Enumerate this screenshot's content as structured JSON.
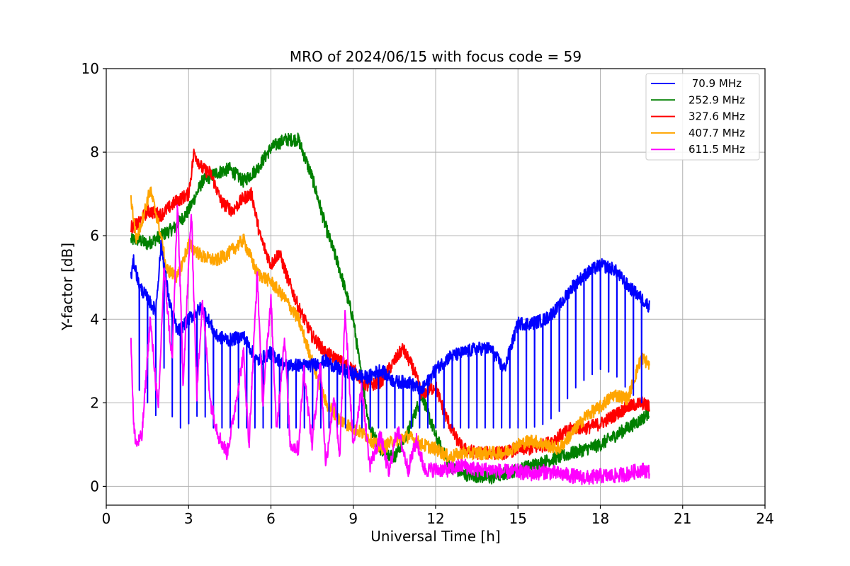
{
  "chart_data": {
    "type": "line",
    "title": "MRO of 2024/06/15 with focus code = 59",
    "xlabel": "Universal Time [h]",
    "ylabel": "Y-factor [dB]",
    "xlim": [
      0,
      24
    ],
    "ylim": [
      -0.45,
      10
    ],
    "x_ticks": [
      0,
      3,
      6,
      9,
      12,
      15,
      18,
      21,
      24
    ],
    "y_ticks": [
      0,
      2,
      4,
      6,
      8,
      10
    ],
    "grid": true,
    "legend_position": "top-right",
    "series": [
      {
        "name": " 70.9 MHz",
        "color": "#0000ff",
        "x": [
          0.9,
          1.0,
          1.2,
          1.5,
          1.8,
          2.0,
          2.3,
          2.6,
          3.0,
          3.5,
          4.0,
          4.5,
          5.0,
          5.5,
          6.0,
          6.5,
          7.0,
          7.5,
          8.0,
          8.5,
          9.0,
          9.5,
          10.0,
          10.5,
          11.0,
          11.5,
          12.0,
          12.5,
          13.0,
          13.5,
          14.0,
          14.5,
          15.0,
          15.5,
          16.0,
          16.5,
          17.0,
          17.5,
          18.0,
          18.5,
          19.0,
          19.5,
          19.8
        ],
        "y": [
          5.0,
          5.4,
          4.8,
          4.5,
          4.2,
          5.8,
          4.4,
          3.7,
          4.0,
          4.3,
          3.6,
          3.5,
          3.6,
          3.0,
          3.2,
          2.9,
          2.9,
          2.9,
          3.0,
          2.8,
          2.7,
          2.6,
          2.8,
          2.5,
          2.5,
          2.3,
          2.8,
          3.1,
          3.2,
          3.3,
          3.3,
          2.8,
          3.9,
          3.9,
          4.0,
          4.3,
          4.8,
          5.1,
          5.3,
          5.2,
          4.8,
          4.5,
          4.3
        ],
        "dip_interval": 0.3,
        "dip_min": 1.4
      },
      {
        "name": "252.9 MHz",
        "color": "#008000",
        "x": [
          0.9,
          1.2,
          1.5,
          2.0,
          2.5,
          3.0,
          3.5,
          4.0,
          4.5,
          5.0,
          5.5,
          6.0,
          6.5,
          7.0,
          7.5,
          8.0,
          8.5,
          9.0,
          9.3,
          9.6,
          10.0,
          10.5,
          11.0,
          11.5,
          12.0,
          12.5,
          13.0,
          13.5,
          14.0,
          14.5,
          15.0,
          15.5,
          16.0,
          16.5,
          17.0,
          17.5,
          18.0,
          18.5,
          19.0,
          19.5,
          19.8
        ],
        "y": [
          5.9,
          5.9,
          5.8,
          6.0,
          6.2,
          6.6,
          7.3,
          7.5,
          7.6,
          7.3,
          7.6,
          8.1,
          8.3,
          8.3,
          7.4,
          6.2,
          5.2,
          4.0,
          2.6,
          1.4,
          0.9,
          0.7,
          1.3,
          2.2,
          1.2,
          0.5,
          0.3,
          0.25,
          0.2,
          0.3,
          0.4,
          0.5,
          0.6,
          0.7,
          0.8,
          0.9,
          1.0,
          1.2,
          1.4,
          1.6,
          1.8
        ]
      },
      {
        "name": "327.6 MHz",
        "color": "#ff0000",
        "x": [
          0.9,
          1.2,
          1.5,
          2.0,
          2.5,
          3.0,
          3.2,
          3.5,
          3.8,
          4.2,
          4.6,
          5.0,
          5.3,
          5.6,
          6.0,
          6.3,
          6.6,
          7.0,
          7.5,
          8.0,
          8.5,
          9.0,
          9.5,
          10.0,
          10.5,
          10.8,
          11.2,
          11.5,
          12.0,
          12.3,
          12.7,
          13.0,
          13.5,
          14.0,
          14.5,
          15.0,
          15.5,
          16.0,
          16.5,
          17.0,
          17.5,
          18.0,
          18.5,
          19.0,
          19.5,
          19.8
        ],
        "y": [
          6.2,
          6.3,
          6.6,
          6.5,
          6.8,
          7.0,
          8.0,
          7.6,
          7.5,
          6.8,
          6.6,
          6.9,
          7.0,
          6.0,
          5.3,
          5.6,
          5.0,
          4.3,
          3.6,
          3.2,
          3.0,
          2.8,
          2.4,
          2.5,
          3.0,
          3.3,
          2.8,
          2.2,
          2.4,
          1.8,
          1.2,
          0.9,
          0.8,
          0.8,
          0.8,
          0.9,
          0.9,
          1.0,
          1.2,
          1.4,
          1.4,
          1.5,
          1.7,
          1.9,
          2.0,
          1.9
        ]
      },
      {
        "name": "407.7 MHz",
        "color": "#ffa500",
        "x": [
          0.9,
          1.1,
          1.4,
          1.6,
          1.9,
          2.2,
          2.6,
          3.0,
          3.5,
          4.0,
          4.5,
          5.0,
          5.5,
          6.0,
          6.5,
          7.0,
          7.5,
          8.0,
          8.5,
          9.0,
          9.5,
          10.0,
          10.5,
          11.0,
          11.5,
          12.0,
          12.5,
          13.0,
          13.5,
          14.0,
          14.5,
          15.0,
          15.5,
          16.0,
          16.5,
          17.0,
          17.5,
          18.0,
          18.5,
          19.0,
          19.5,
          19.8
        ],
        "y": [
          6.9,
          5.9,
          6.6,
          7.1,
          6.3,
          5.2,
          5.0,
          5.8,
          5.5,
          5.4,
          5.6,
          5.9,
          5.1,
          4.9,
          4.5,
          4.0,
          3.0,
          2.0,
          1.6,
          1.4,
          1.2,
          0.9,
          1.1,
          1.2,
          1.0,
          0.9,
          0.7,
          0.8,
          0.8,
          0.8,
          0.8,
          1.0,
          1.1,
          1.0,
          0.9,
          1.3,
          1.7,
          1.9,
          2.2,
          2.1,
          3.1,
          2.9
        ]
      },
      {
        "name": "611.5 MHz",
        "color": "#ff00ff",
        "x": [
          0.9,
          1.0,
          1.1,
          1.3,
          1.6,
          1.9,
          2.1,
          2.4,
          2.6,
          2.8,
          3.1,
          3.3,
          3.5,
          3.8,
          4.1,
          4.4,
          4.6,
          5.0,
          5.2,
          5.5,
          5.7,
          6.0,
          6.2,
          6.5,
          6.7,
          7.0,
          7.2,
          7.5,
          7.8,
          8.0,
          8.3,
          8.5,
          8.7,
          9.0,
          9.3,
          9.6,
          10.0,
          10.3,
          10.6,
          11.0,
          11.3,
          11.6,
          12.0,
          12.5,
          13.0,
          13.5,
          14.0,
          14.5,
          15.0,
          15.5,
          16.0,
          16.5,
          17.0,
          17.5,
          18.0,
          18.5,
          19.0,
          19.5,
          19.8
        ],
        "y": [
          3.6,
          1.4,
          1.0,
          1.2,
          4.0,
          1.8,
          5.2,
          3.0,
          6.8,
          2.5,
          6.6,
          2.2,
          4.5,
          2.0,
          1.2,
          0.8,
          1.5,
          3.2,
          1.0,
          5.1,
          2.0,
          4.5,
          1.3,
          3.6,
          1.0,
          0.9,
          2.8,
          1.0,
          3.0,
          0.5,
          2.2,
          0.6,
          4.2,
          0.9,
          2.4,
          0.5,
          1.2,
          0.3,
          1.4,
          0.4,
          1.1,
          0.4,
          0.4,
          0.4,
          0.5,
          0.4,
          0.4,
          0.35,
          0.35,
          0.3,
          0.35,
          0.3,
          0.25,
          0.2,
          0.25,
          0.25,
          0.3,
          0.4,
          0.35
        ]
      }
    ]
  }
}
